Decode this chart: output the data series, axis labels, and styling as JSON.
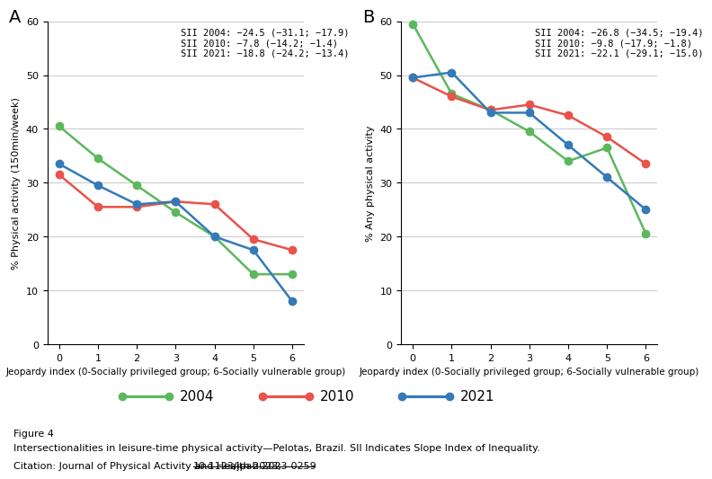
{
  "panel_A": {
    "title": "A",
    "ylabel": "% Physical activity (150min/week)",
    "xlabel": "Jeopardy index (0-Socially privileged group; 6-Socially vulnerable group)",
    "ylim": [
      0,
      60
    ],
    "yticks": [
      0,
      10,
      20,
      30,
      40,
      50,
      60
    ],
    "xticks": [
      0,
      1,
      2,
      3,
      4,
      5,
      6
    ],
    "annotation": "SII 2004: −24.5 (−31.1; −17.9)\nSII 2010: −7.8 (−14.2; −1.4)\nSII 2021: −18.8 (−24.2; −13.4)",
    "series": {
      "2004": [
        40.5,
        34.5,
        29.5,
        24.5,
        20.0,
        13.0,
        13.0
      ],
      "2010": [
        31.5,
        25.5,
        25.5,
        26.5,
        26.0,
        19.5,
        17.5
      ],
      "2021": [
        33.5,
        29.5,
        26.0,
        26.5,
        20.0,
        17.5,
        8.0
      ]
    }
  },
  "panel_B": {
    "title": "B",
    "ylabel": "% Any physical activity",
    "xlabel": "Jeopardy index (0-Socially privileged group; 6-Socially vulnerable group)",
    "ylim": [
      0,
      60
    ],
    "yticks": [
      0,
      10,
      20,
      30,
      40,
      50,
      60
    ],
    "xticks": [
      0,
      1,
      2,
      3,
      4,
      5,
      6
    ],
    "annotation": "SII 2004: −26.8 (−34.5; −19.4)\nSII 2010: −9.8 (−17.9; −1.8)\nSII 2021: −22.1 (−29.1; −15.0)",
    "series": {
      "2004": [
        59.5,
        46.5,
        43.5,
        39.5,
        34.0,
        36.5,
        20.5
      ],
      "2010": [
        49.5,
        46.0,
        43.5,
        44.5,
        42.5,
        38.5,
        33.5
      ],
      "2021": [
        49.5,
        50.5,
        43.0,
        43.0,
        37.0,
        31.0,
        25.0
      ]
    }
  },
  "colors": {
    "2004": "#5cb85c",
    "2010": "#e8534a",
    "2021": "#337ab7"
  },
  "legend_entries": [
    "2004",
    "2010",
    "2021"
  ],
  "linewidth": 1.8,
  "markersize": 6,
  "caption_line1": "Figure 4",
  "caption_line2": "Intersectionalities in leisure-time physical activity—Pelotas, Brazil. SII Indicates Slope Index of Inequality.",
  "citation_prefix": "Citation: Journal of Physical Activity and Health 2023; ",
  "citation_link": "10.1123/jpah.2023-0259",
  "background_color": "#ffffff",
  "grid_color": "#cccccc",
  "annotation_fontsize": 7.5,
  "axis_fontsize": 8,
  "tick_fontsize": 8,
  "caption_fontsize": 8,
  "panel_label_fontsize": 14,
  "legend_fontsize": 11
}
